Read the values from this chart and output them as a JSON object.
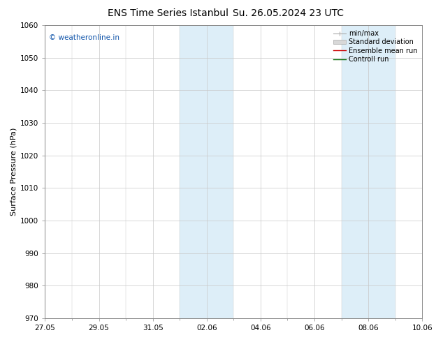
{
  "title_left": "ENS Time Series Istanbul",
  "title_right": "Su. 26.05.2024 23 UTC",
  "ylabel": "Surface Pressure (hPa)",
  "ylim": [
    970,
    1060
  ],
  "yticks": [
    970,
    980,
    990,
    1000,
    1010,
    1020,
    1030,
    1040,
    1050,
    1060
  ],
  "xlim": [
    0,
    14
  ],
  "xtick_major_labels": [
    "27.05",
    "29.05",
    "31.05",
    "02.06",
    "04.06",
    "06.06",
    "08.06",
    "10.06"
  ],
  "xtick_major_positions": [
    0,
    2,
    4,
    6,
    8,
    10,
    12,
    14
  ],
  "xtick_minor_positions": [
    1,
    3,
    5,
    7,
    9,
    11,
    13
  ],
  "shaded_bands": [
    {
      "x_start": 5.0,
      "x_end": 7.0
    },
    {
      "x_start": 11.0,
      "x_end": 13.0
    }
  ],
  "shaded_color": "#ddeef8",
  "watermark_text": "© weatheronline.in",
  "watermark_color": "#1155aa",
  "legend_entries": [
    "min/max",
    "Standard deviation",
    "Ensemble mean run",
    "Controll run"
  ],
  "bg_color": "#ffffff",
  "plot_bg_color": "#ffffff",
  "grid_color": "#c8c8c8",
  "spine_color": "#888888",
  "title_fontsize": 10,
  "axis_label_fontsize": 8,
  "tick_fontsize": 7.5,
  "watermark_fontsize": 7.5,
  "legend_fontsize": 7
}
